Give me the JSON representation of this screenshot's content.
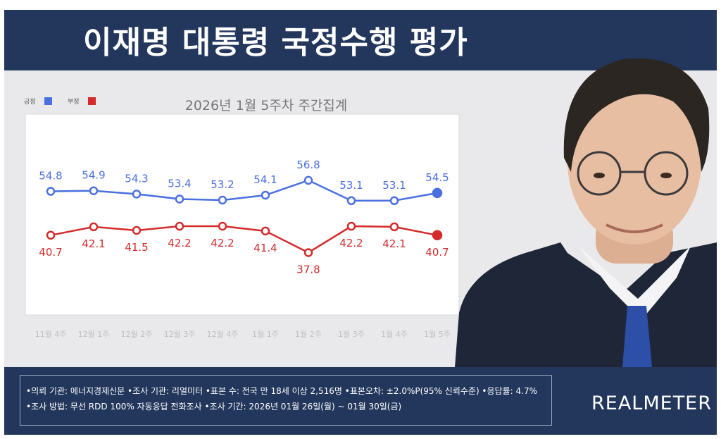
{
  "header": {
    "title": "이재명 대통령 국정수행 평가"
  },
  "chart_data": {
    "type": "line",
    "title": "2026년 1월 5주차 주간집계",
    "categories": [
      "11월 4주",
      "12월 1주",
      "12월 2주",
      "12월 3주",
      "12월 4주",
      "1월 1주",
      "1월 2주",
      "1월 3주",
      "1월 4주",
      "1월 5주"
    ],
    "series": [
      {
        "name": "긍정",
        "color": "#4a6fe0",
        "values": [
          54.8,
          54.9,
          54.3,
          53.4,
          53.2,
          54.1,
          56.8,
          53.1,
          53.1,
          54.5
        ],
        "labels": [
          "54.8",
          "54.9",
          "54.3",
          "53.4",
          "53.2",
          "54.1",
          "56.8",
          "53.1",
          "53.1",
          "54.5"
        ]
      },
      {
        "name": "부정",
        "color": "#d42a2a",
        "values": [
          40.7,
          42.1,
          41.5,
          42.2,
          42.2,
          41.4,
          37.8,
          42.2,
          42.1,
          40.7
        ],
        "labels": [
          "40.7",
          "42.1",
          "41.5",
          "42.2",
          "42.2",
          "41.4",
          "37.8",
          "42.2",
          "42.1",
          "40.7"
        ]
      }
    ],
    "legend": "top-left"
  },
  "footer": {
    "line1": "•의뢰 기관: 에너지경제신문 •조사 기관: 리얼미터 •표본 수: 전국 만 18세 이상 2,516명 •표본오차: ±2.0%P(95% 신뢰수준) •응답률: 4.7%",
    "line2": "•조사 방법: 무선 RDD 100% 자동응답 전화조사 •조사 기간: 2026년 01월 26일(월) ~ 01월 30일(금)",
    "brand": "REALMETER"
  }
}
